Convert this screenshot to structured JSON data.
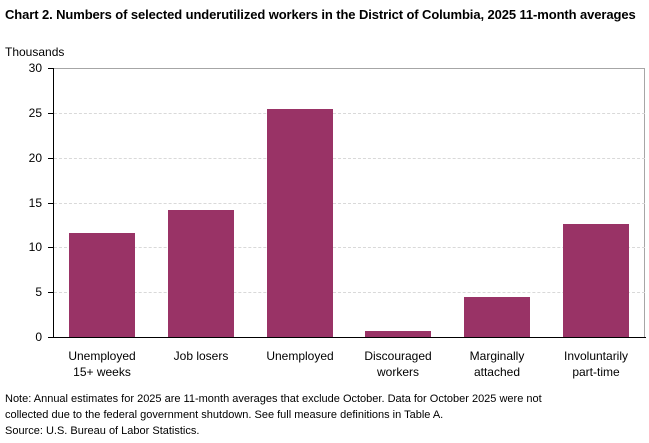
{
  "chart_data": {
    "type": "bar",
    "title": "Chart 2. Numbers of selected underutilized workers in the District of Columbia, 2025 11-month averages",
    "xlabel": "",
    "ylabel": "Thousands",
    "ylim": [
      0,
      30
    ],
    "yticks": [
      0,
      5,
      10,
      15,
      20,
      25,
      30
    ],
    "grid": true,
    "legend": null,
    "categories": [
      "Unemployed 15+ weeks",
      "Job losers",
      "Unemployed",
      "Discouraged workers",
      "Marginally attached",
      "Involuntarily part-time"
    ],
    "category_lines": [
      [
        "Unemployed",
        "15+ weeks"
      ],
      [
        "Job losers"
      ],
      [
        "Unemployed"
      ],
      [
        "Discouraged",
        "workers"
      ],
      [
        "Marginally",
        "attached"
      ],
      [
        "Involuntarily",
        "part-time"
      ]
    ],
    "values": [
      11.6,
      14.2,
      25.4,
      0.7,
      4.5,
      12.6
    ],
    "bar_color": "#993366"
  },
  "header": {
    "title": "Chart 2. Numbers of selected underutilized workers in the District of Columbia, 2025 11-month averages",
    "y_unit": "Thousands"
  },
  "footer": {
    "note_line1": "Note:  Annual estimates for 2025 are 11-month averages that exclude October. Data for October 2025 were not",
    "note_line2": "collected due to the federal government  shutdown. See full measure definitions in Table A.",
    "source": "Source: U.S. Bureau of Labor Statistics."
  }
}
